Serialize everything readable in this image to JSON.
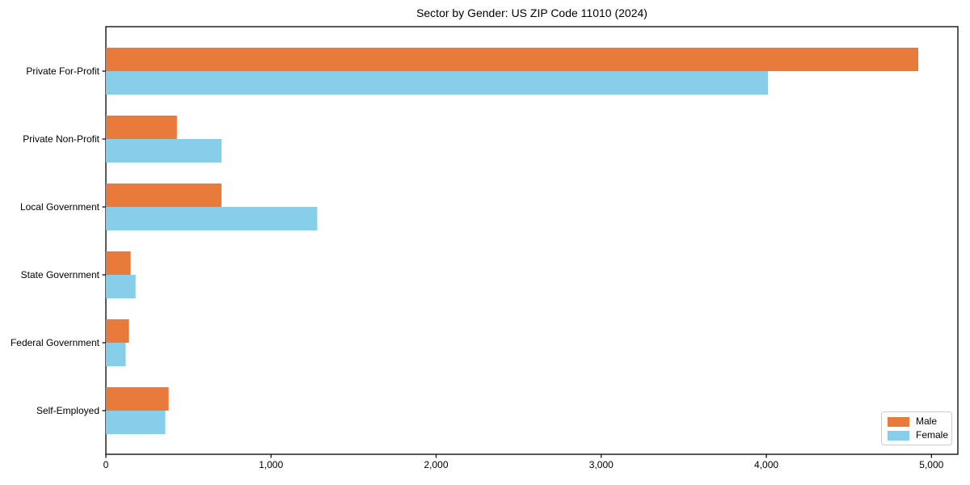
{
  "figure": {
    "title": "Sector by Gender: US ZIP Code 11010 (2024)"
  },
  "chart_data": {
    "type": "bar",
    "orientation": "horizontal",
    "title": "Sector by Gender: US ZIP Code 11010 (2024)",
    "categories": [
      "Private For-Profit",
      "Private Non-Profit",
      "Local Government",
      "State Government",
      "Federal Government",
      "Self-Employed"
    ],
    "series": [
      {
        "name": "Male",
        "color": "#e87a3c",
        "values": [
          4920,
          430,
          700,
          150,
          140,
          380
        ]
      },
      {
        "name": "Female",
        "color": "#87ceeb",
        "values": [
          4010,
          700,
          1280,
          180,
          120,
          360
        ]
      }
    ],
    "xlabel": "",
    "ylabel": "",
    "xlim": [
      0,
      5160
    ],
    "xticks": [
      0,
      1000,
      2000,
      3000,
      4000,
      5000
    ],
    "xtick_labels": [
      "0",
      "1,000",
      "2,000",
      "3,000",
      "4,000",
      "5,000"
    ],
    "grid": false,
    "legend": {
      "position": "lower right"
    }
  },
  "colors": {
    "male": "#e87a3c",
    "female": "#87ceeb",
    "axis": "#000000",
    "legend_border": "#cccccc",
    "background": "#ffffff"
  }
}
